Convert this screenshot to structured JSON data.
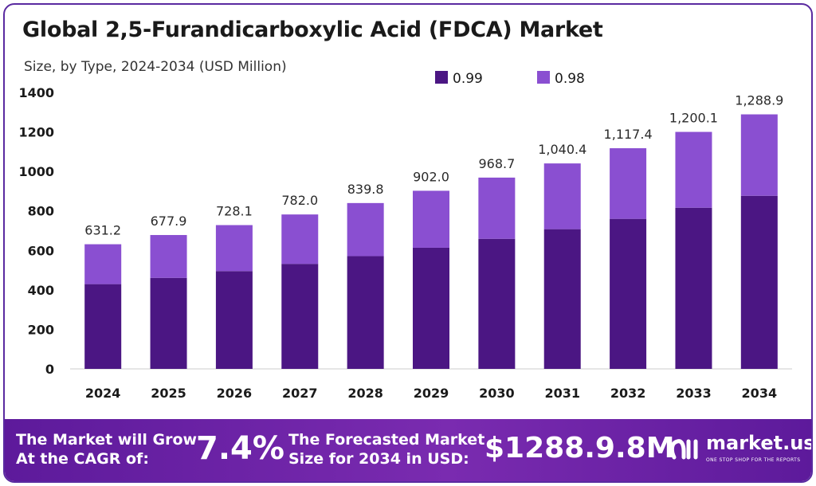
{
  "header": {
    "title": "Global 2,5-Furandicarboxylic Acid (FDCA) Market",
    "subtitle": "Size, by Type, 2024-2034 (USD Million)"
  },
  "chart_data": {
    "type": "bar",
    "stacked": true,
    "categories": [
      "2024",
      "2025",
      "2026",
      "2027",
      "2028",
      "2029",
      "2030",
      "2031",
      "2032",
      "2033",
      "2034"
    ],
    "series": [
      {
        "name": "0.99",
        "color": "#4b1683",
        "values": [
          429.2,
          461.0,
          495.1,
          531.8,
          571.1,
          613.4,
          658.7,
          707.5,
          759.8,
          816.1,
          876.5
        ]
      },
      {
        "name": "0.98",
        "color": "#8a4fd1",
        "values": [
          202.0,
          216.9,
          233.0,
          250.2,
          268.7,
          288.6,
          310.0,
          332.9,
          357.6,
          384.0,
          412.4
        ]
      }
    ],
    "totals": [
      "631.2",
      "677.9",
      "728.1",
      "782.0",
      "839.8",
      "902.0",
      "968.7",
      "1,040.4",
      "1,117.4",
      "1,200.1",
      "1,288.9"
    ],
    "ylim": [
      0,
      1400
    ],
    "yticks": [
      "0",
      "200",
      "400",
      "600",
      "800",
      "1000",
      "1200",
      "1400"
    ],
    "grid": false,
    "legend_position": "top-right"
  },
  "footer": {
    "cagr_line1": "The Market will Grow",
    "cagr_line2": "At the CAGR of:",
    "cagr_value": "7.4%",
    "forecast_line1": "The Forecasted Market",
    "forecast_line2": "Size for 2034 in USD:",
    "forecast_value": "$1288.9.8M",
    "brand_name": "market.us",
    "brand_tagline": "ONE STOP SHOP FOR THE REPORTS"
  }
}
